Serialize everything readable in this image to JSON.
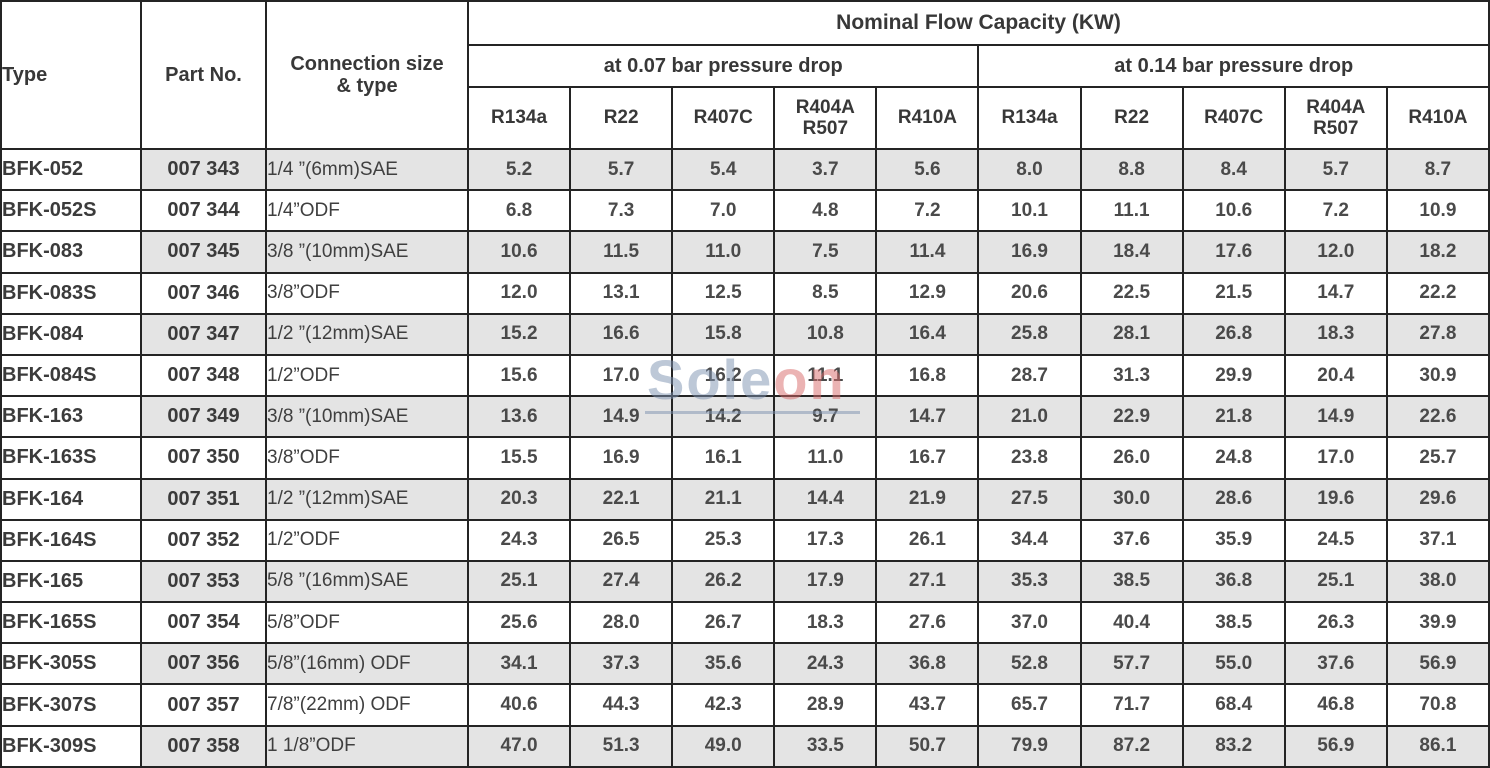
{
  "table": {
    "capacity_title": "Nominal Flow Capacity (KW)",
    "columns": {
      "type": "Type",
      "part_no": "Part No.",
      "connection": "Connection size\n& type"
    },
    "groups": {
      "p007": "at 0.07 bar pressure drop",
      "p014": "at 0.14 bar pressure drop"
    },
    "refrigerants": [
      "R134a",
      "R22",
      "R407C",
      "R404A\nR507",
      "R410A"
    ],
    "colors": {
      "shaded_row": "#e4e4e4",
      "border": "#242424",
      "text": "#3b3b3b"
    },
    "rows": [
      {
        "type": "BFK-052",
        "part_no": "007 343",
        "connection": "1/4 ”(6mm)SAE",
        "at_007": [
          "5.2",
          "5.7",
          "5.4",
          "3.7",
          "5.6"
        ],
        "at_014": [
          "8.0",
          "8.8",
          "8.4",
          "5.7",
          "8.7"
        ]
      },
      {
        "type": "BFK-052S",
        "part_no": "007 344",
        "connection": "1/4”ODF",
        "at_007": [
          "6.8",
          "7.3",
          "7.0",
          "4.8",
          "7.2"
        ],
        "at_014": [
          "10.1",
          "11.1",
          "10.6",
          "7.2",
          "10.9"
        ]
      },
      {
        "type": "BFK-083",
        "part_no": "007 345",
        "connection": "3/8 ”(10mm)SAE",
        "at_007": [
          "10.6",
          "11.5",
          "11.0",
          "7.5",
          "11.4"
        ],
        "at_014": [
          "16.9",
          "18.4",
          "17.6",
          "12.0",
          "18.2"
        ]
      },
      {
        "type": "BFK-083S",
        "part_no": "007 346",
        "connection": "3/8”ODF",
        "at_007": [
          "12.0",
          "13.1",
          "12.5",
          "8.5",
          "12.9"
        ],
        "at_014": [
          "20.6",
          "22.5",
          "21.5",
          "14.7",
          "22.2"
        ]
      },
      {
        "type": "BFK-084",
        "part_no": "007 347",
        "connection": "1/2 ”(12mm)SAE",
        "at_007": [
          "15.2",
          "16.6",
          "15.8",
          "10.8",
          "16.4"
        ],
        "at_014": [
          "25.8",
          "28.1",
          "26.8",
          "18.3",
          "27.8"
        ]
      },
      {
        "type": "BFK-084S",
        "part_no": "007 348",
        "connection": "1/2”ODF",
        "at_007": [
          "15.6",
          "17.0",
          "16.2",
          "11.1",
          "16.8"
        ],
        "at_014": [
          "28.7",
          "31.3",
          "29.9",
          "20.4",
          "30.9"
        ]
      },
      {
        "type": "BFK-163",
        "part_no": "007 349",
        "connection": "3/8 ”(10mm)SAE",
        "at_007": [
          "13.6",
          "14.9",
          "14.2",
          "9.7",
          "14.7"
        ],
        "at_014": [
          "21.0",
          "22.9",
          "21.8",
          "14.9",
          "22.6"
        ]
      },
      {
        "type": "BFK-163S",
        "part_no": "007 350",
        "connection": "3/8”ODF",
        "at_007": [
          "15.5",
          "16.9",
          "16.1",
          "11.0",
          "16.7"
        ],
        "at_014": [
          "23.8",
          "26.0",
          "24.8",
          "17.0",
          "25.7"
        ]
      },
      {
        "type": "BFK-164",
        "part_no": "007 351",
        "connection": "1/2 ”(12mm)SAE",
        "at_007": [
          "20.3",
          "22.1",
          "21.1",
          "14.4",
          "21.9"
        ],
        "at_014": [
          "27.5",
          "30.0",
          "28.6",
          "19.6",
          "29.6"
        ]
      },
      {
        "type": "BFK-164S",
        "part_no": "007 352",
        "connection": "1/2”ODF",
        "at_007": [
          "24.3",
          "26.5",
          "25.3",
          "17.3",
          "26.1"
        ],
        "at_014": [
          "34.4",
          "37.6",
          "35.9",
          "24.5",
          "37.1"
        ]
      },
      {
        "type": "BFK-165",
        "part_no": "007 353",
        "connection": "5/8 ”(16mm)SAE",
        "at_007": [
          "25.1",
          "27.4",
          "26.2",
          "17.9",
          "27.1"
        ],
        "at_014": [
          "35.3",
          "38.5",
          "36.8",
          "25.1",
          "38.0"
        ]
      },
      {
        "type": "BFK-165S",
        "part_no": "007 354",
        "connection": "5/8”ODF",
        "at_007": [
          "25.6",
          "28.0",
          "26.7",
          "18.3",
          "27.6"
        ],
        "at_014": [
          "37.0",
          "40.4",
          "38.5",
          "26.3",
          "39.9"
        ]
      },
      {
        "type": "BFK-305S",
        "part_no": "007 356",
        "connection": "5/8”(16mm) ODF",
        "at_007": [
          "34.1",
          "37.3",
          "35.6",
          "24.3",
          "36.8"
        ],
        "at_014": [
          "52.8",
          "57.7",
          "55.0",
          "37.6",
          "56.9"
        ]
      },
      {
        "type": "BFK-307S",
        "part_no": "007 357",
        "connection": "7/8”(22mm) ODF",
        "at_007": [
          "40.6",
          "44.3",
          "42.3",
          "28.9",
          "43.7"
        ],
        "at_014": [
          "65.7",
          "71.7",
          "68.4",
          "46.8",
          "70.8"
        ]
      },
      {
        "type": "BFK-309S",
        "part_no": "007 358",
        "connection": "1 1/8”ODF",
        "at_007": [
          "47.0",
          "51.3",
          "49.0",
          "33.5",
          "50.7"
        ],
        "at_014": [
          "79.9",
          "87.2",
          "83.2",
          "56.9",
          "86.1"
        ]
      }
    ]
  },
  "watermark": {
    "part1": "Sole",
    "part2": "on",
    "color1": "#7e92b0",
    "color2": "#d96a6a"
  }
}
